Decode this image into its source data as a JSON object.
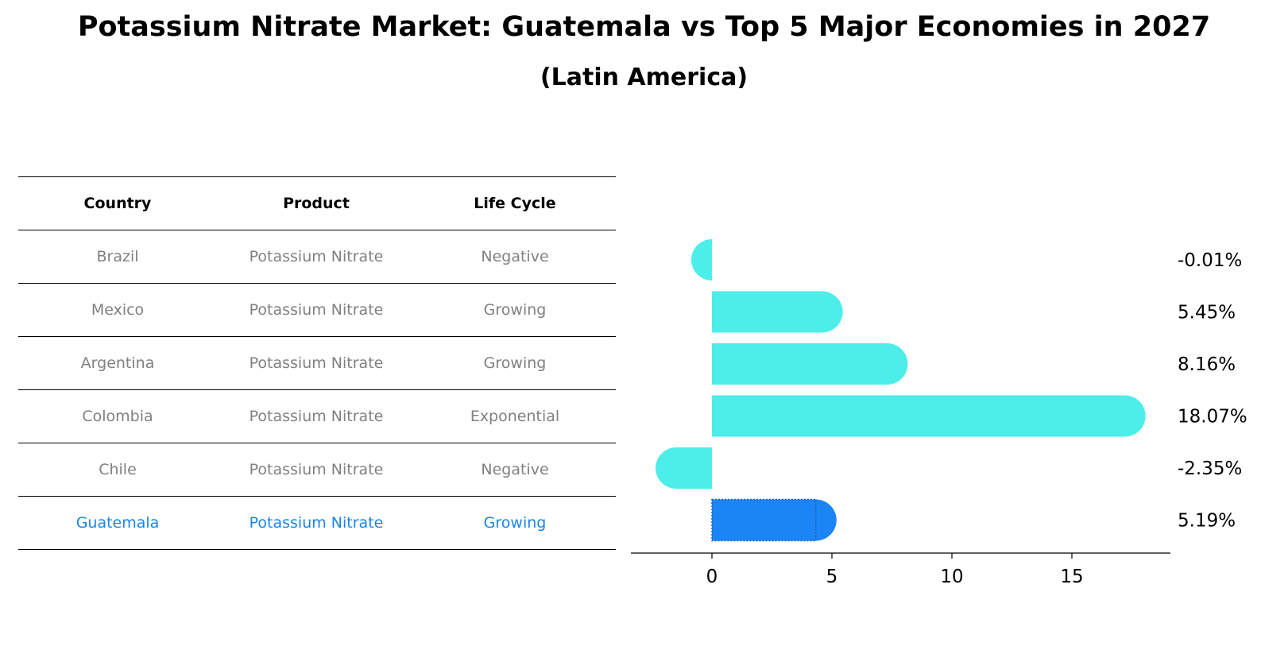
{
  "title": "Potassium Nitrate Market: Guatemala vs Top 5 Major Economies in 2027",
  "subtitle": "(Latin America)",
  "table": {
    "headers": [
      "Country",
      "Product",
      "Life Cycle"
    ],
    "rows": [
      [
        "Brazil",
        "Potassium Nitrate",
        "Negative"
      ],
      [
        "Mexico",
        "Potassium Nitrate",
        "Growing"
      ],
      [
        "Argentina",
        "Potassium Nitrate",
        "Growing"
      ],
      [
        "Colombia",
        "Potassium Nitrate",
        "Exponential"
      ],
      [
        "Chile",
        "Potassium Nitrate",
        "Negative"
      ],
      [
        "Guatemala",
        "Potassium Nitrate",
        "Growing"
      ]
    ],
    "highlight_row": 5
  },
  "chart_data": {
    "type": "bar",
    "orientation": "horizontal",
    "categories": [
      "Brazil",
      "Mexico",
      "Argentina",
      "Colombia",
      "Chile",
      "Guatemala"
    ],
    "values": [
      -0.01,
      5.45,
      8.16,
      18.07,
      -2.35,
      5.19
    ],
    "value_labels": [
      "-0.01%",
      "5.45%",
      "8.16%",
      "18.07%",
      "-2.35%",
      "5.19%"
    ],
    "xticks": [
      0,
      5,
      10,
      15
    ],
    "xlim": [
      -3.4,
      19.0
    ],
    "colors": {
      "default": "#4deeea",
      "highlight": "#1b85f5"
    },
    "highlight_index": 5
  }
}
